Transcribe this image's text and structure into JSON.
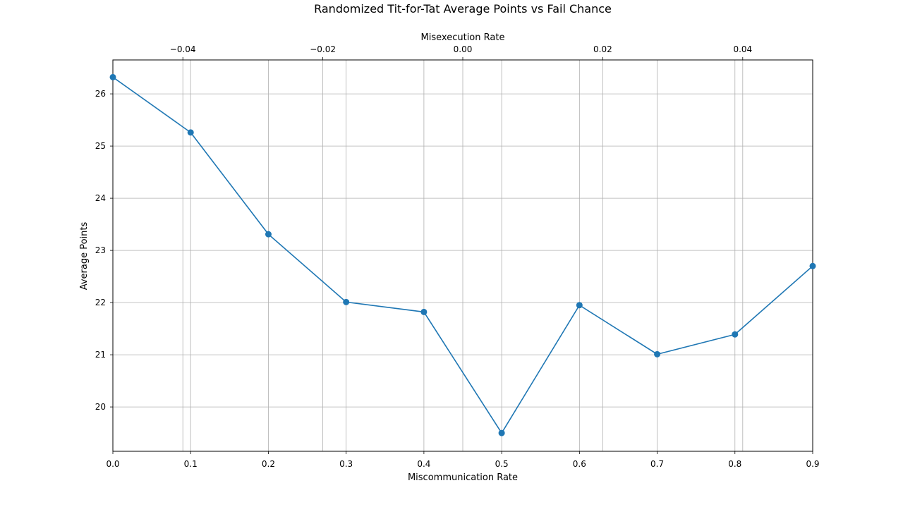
{
  "chart_data": {
    "type": "line",
    "title": "Randomized Tit-for-Tat Average Points vs Fail Chance",
    "xlabel": "Miscommunication Rate",
    "ylabel": "Average Points",
    "x2label": "Misexecution Rate",
    "xlim": [
      0.0,
      0.9
    ],
    "ylim": [
      19.15,
      26.65
    ],
    "x2lim": [
      -0.05,
      0.05
    ],
    "x_ticks": [
      0.0,
      0.1,
      0.2,
      0.3,
      0.4,
      0.5,
      0.6,
      0.7,
      0.8,
      0.9
    ],
    "x_tick_labels": [
      "0.0",
      "0.1",
      "0.2",
      "0.3",
      "0.4",
      "0.5",
      "0.6",
      "0.7",
      "0.8",
      "0.9"
    ],
    "y_ticks": [
      20,
      21,
      22,
      23,
      24,
      25,
      26
    ],
    "y_tick_labels": [
      "20",
      "21",
      "22",
      "23",
      "24",
      "25",
      "26"
    ],
    "x2_ticks": [
      -0.04,
      -0.02,
      0.0,
      0.02,
      0.04
    ],
    "x2_tick_labels": [
      "−0.04",
      "−0.02",
      "0.00",
      "0.02",
      "0.04"
    ],
    "grid": true,
    "series": [
      {
        "x": [
          0.0,
          0.1,
          0.2,
          0.3,
          0.4,
          0.5,
          0.6,
          0.7,
          0.8,
          0.9
        ],
        "y": [
          26.32,
          25.26,
          23.31,
          22.01,
          21.82,
          19.5,
          21.95,
          21.01,
          21.39,
          22.7
        ],
        "color": "#1f77b4"
      }
    ]
  }
}
